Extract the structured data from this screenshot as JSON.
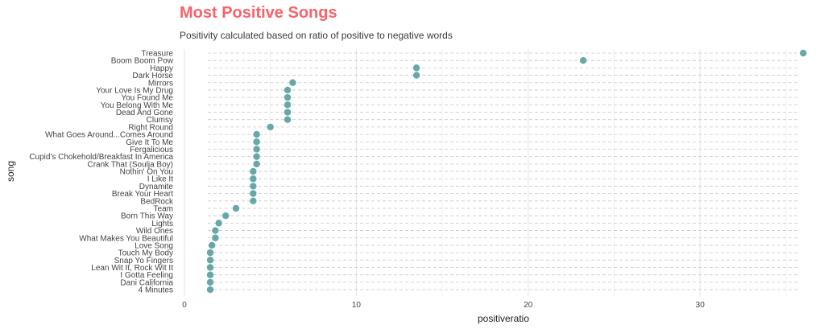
{
  "chart_data": {
    "type": "scatter",
    "title": "Most Positive Songs",
    "subtitle": "Positivity calculated based on ratio of positive to negative words",
    "xlabel": "positiveratio",
    "ylabel": "song",
    "xlim": [
      0,
      37.3
    ],
    "xticks": [
      0,
      10,
      20,
      30
    ],
    "grid": true,
    "point_color": "#66a8a8",
    "title_color": "#f8626a",
    "songs": [
      "Treasure",
      "Boom Boom Pow",
      "Happy",
      "Dark Horse",
      "Mirrors",
      "Your Love Is My Drug",
      "You Found Me",
      "You Belong With Me",
      "Dead And Gone",
      "Clumsy",
      "Right Round",
      "What Goes Around...Comes Around",
      "Give It To Me",
      "Fergalicious",
      "Cupid's Chokehold/Breakfast In America",
      "Crank That (Soulja Boy)",
      "Nothin' On You",
      "I Like It",
      "Dynamite",
      "Break Your Heart",
      "BedRock",
      "Team",
      "Born This Way",
      "Lights",
      "Wild Ones",
      "What Makes You Beautiful",
      "Love Song",
      "Touch My Body",
      "Snap Yo Fingers",
      "Lean Wit It, Rock Wit It",
      "I Gotta Feeling",
      "Dani California",
      "4 Minutes"
    ],
    "values": [
      36,
      23.2,
      13.5,
      13.5,
      6.3,
      6,
      6,
      6,
      6,
      6,
      5,
      4.2,
      4.2,
      4.2,
      4.2,
      4.2,
      4,
      4,
      4,
      4,
      4,
      3,
      2.4,
      2,
      1.8,
      1.8,
      1.6,
      1.5,
      1.5,
      1.5,
      1.5,
      1.5,
      1.5
    ]
  }
}
